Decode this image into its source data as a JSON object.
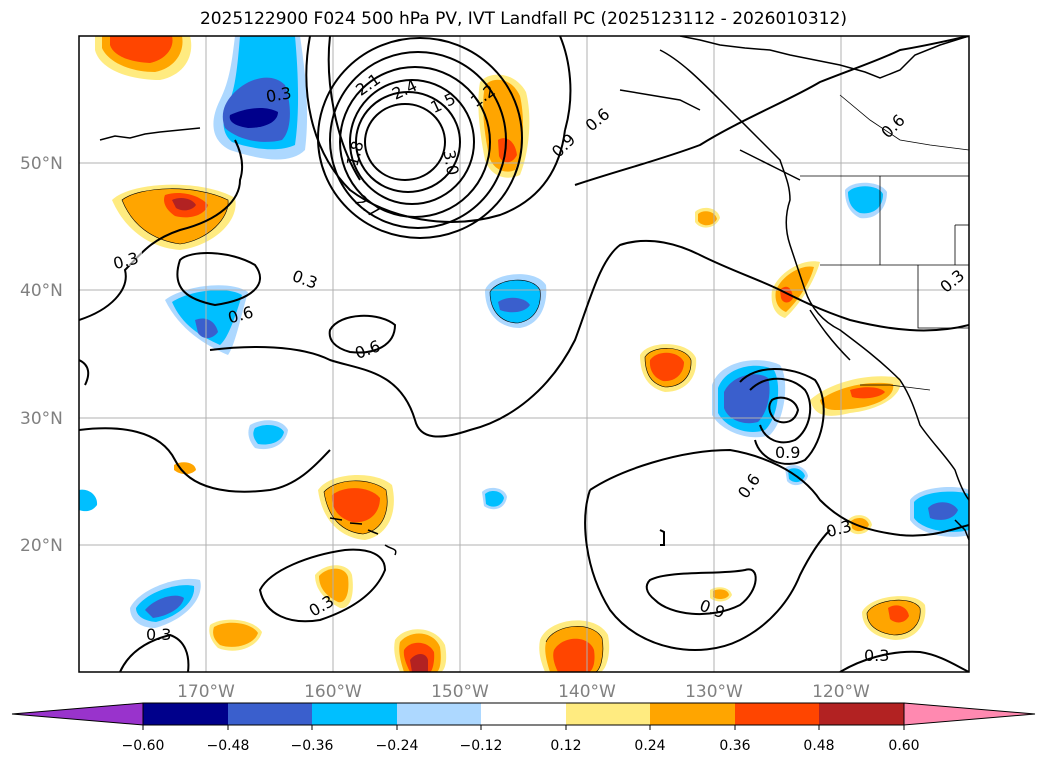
{
  "title": "2025122900 F024 500 hPa PV, IVT Landfall PC (2025123112 - 2026010312)",
  "map": {
    "lat_labels": [
      {
        "lat": 50,
        "label": "50°N"
      },
      {
        "lat": 40,
        "label": "40°N"
      },
      {
        "lat": 30,
        "label": "30°N"
      },
      {
        "lat": 20,
        "label": "20°N"
      }
    ],
    "lon_labels": [
      {
        "lon": -170,
        "label": "170°W"
      },
      {
        "lon": -160,
        "label": "160°W"
      },
      {
        "lon": -150,
        "label": "150°W"
      },
      {
        "lon": -140,
        "label": "140°W"
      },
      {
        "lon": -130,
        "label": "130°W"
      },
      {
        "lon": -120,
        "label": "120°W"
      }
    ],
    "contour_labels": [
      "0.3",
      "0.3",
      "0.3",
      "0.3",
      "0.3",
      "0.3",
      "0.3",
      "0.3",
      "0.6",
      "0.6",
      "0.6",
      "0.6",
      "0.6",
      "0.9",
      "0.9",
      "0.9",
      "1.2",
      "1.5",
      "1.8",
      "2.1",
      "2.4",
      "3.0",
      "2.7"
    ]
  },
  "colorbar": {
    "colors": [
      "#9933cc",
      "#00008b",
      "#3a5fcd",
      "#00bfff",
      "#add8ff",
      "#ffffff",
      "#ffeb80",
      "#ffa500",
      "#ff4500",
      "#b22222",
      "#ff89b0"
    ],
    "ticks": [
      "−0.60",
      "−0.48",
      "−0.36",
      "−0.24",
      "−0.12",
      "0.12",
      "0.24",
      "0.36",
      "0.48",
      "0.60"
    ]
  }
}
